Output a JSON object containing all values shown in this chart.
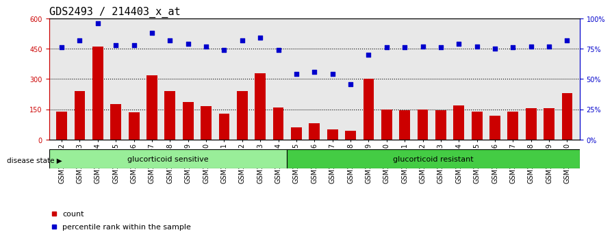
{
  "title": "GDS2493 / 214403_x_at",
  "samples": [
    "GSM135892",
    "GSM135893",
    "GSM135894",
    "GSM135945",
    "GSM135946",
    "GSM135947",
    "GSM135948",
    "GSM135949",
    "GSM135950",
    "GSM135951",
    "GSM135952",
    "GSM135953",
    "GSM135954",
    "GSM135955",
    "GSM135956",
    "GSM135957",
    "GSM135958",
    "GSM135959",
    "GSM135960",
    "GSM135961",
    "GSM135962",
    "GSM135963",
    "GSM135964",
    "GSM135965",
    "GSM135966",
    "GSM135967",
    "GSM135968",
    "GSM135969",
    "GSM135970"
  ],
  "bar_values": [
    140,
    240,
    460,
    175,
    135,
    320,
    240,
    185,
    165,
    130,
    240,
    330,
    160,
    60,
    80,
    50,
    45,
    300,
    150,
    145,
    150,
    145,
    170,
    140,
    120,
    140,
    155,
    155,
    230
  ],
  "blue_values": [
    76,
    82,
    96,
    78,
    78,
    88,
    82,
    79,
    77,
    74,
    82,
    84,
    74,
    54,
    56,
    54,
    46,
    70,
    76,
    76,
    77,
    76,
    79,
    77,
    75,
    76,
    77,
    77,
    82
  ],
  "group1_label": "glucorticoid sensitive",
  "group1_count": 13,
  "group2_label": "glucorticoid resistant",
  "group2_count": 16,
  "disease_state_label": "disease state",
  "bar_color": "#cc0000",
  "dot_color": "#0000cc",
  "ylim_left": [
    0,
    600
  ],
  "ylim_right": [
    0,
    100
  ],
  "yticks_left": [
    0,
    150,
    300,
    450,
    600
  ],
  "ytick_labels_left": [
    "0",
    "150",
    "300",
    "450",
    "600"
  ],
  "yticks_right": [
    0,
    25,
    50,
    75,
    100
  ],
  "ytick_labels_right": [
    "0%",
    "25%",
    "50%",
    "75%",
    "100%"
  ],
  "hlines": [
    150,
    300,
    450
  ],
  "legend_count_label": "count",
  "legend_percentile_label": "percentile rank within the sample",
  "bg_color": "#e8e8e8",
  "group1_color": "#99ee99",
  "group2_color": "#44cc44",
  "title_fontsize": 11,
  "tick_fontsize": 7,
  "label_fontsize": 8
}
